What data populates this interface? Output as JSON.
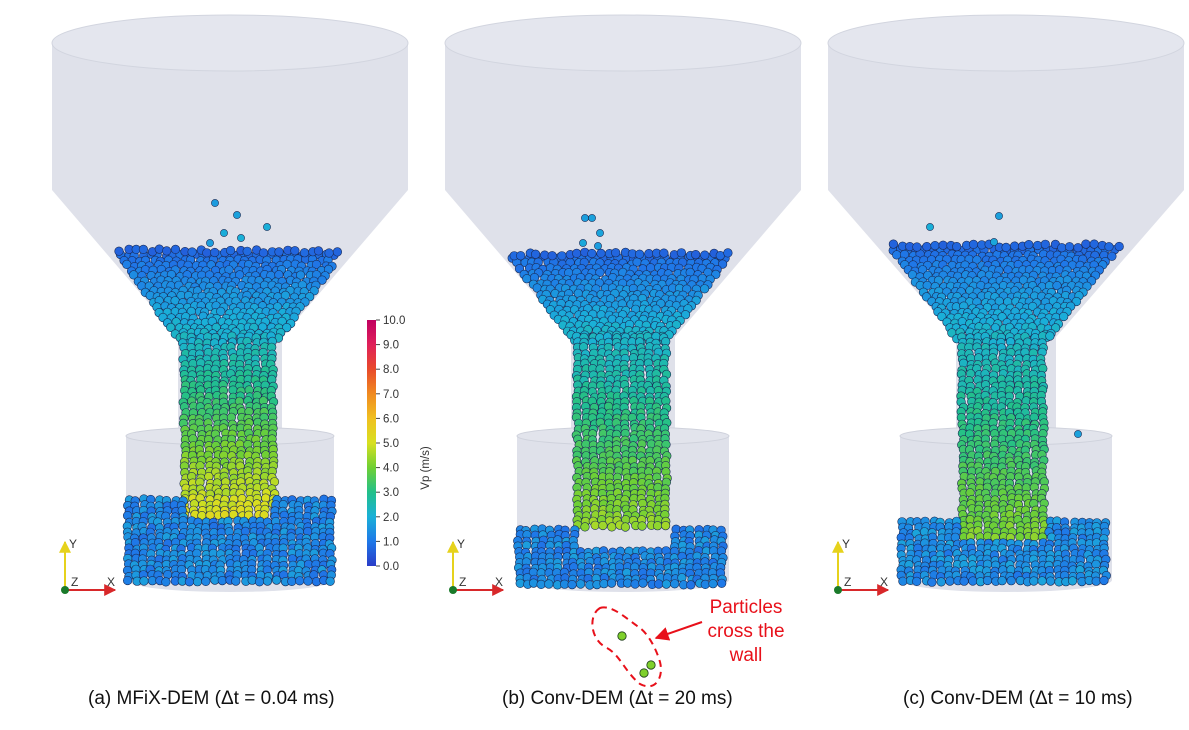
{
  "panels": [
    {
      "caption": "(a) MFiX-DEM (Δt = 0.04 ms)"
    },
    {
      "caption": "(b) Conv-DEM (Δt = 20 ms)"
    },
    {
      "caption": "(c) Conv-DEM (Δt = 10 ms)"
    }
  ],
  "colorbar": {
    "title": "Vp (m/s)",
    "ticks": [
      "10.0",
      "9.0",
      "8.0",
      "7.0",
      "6.0",
      "5.0",
      "4.0",
      "3.0",
      "2.0",
      "1.0",
      "0.0"
    ],
    "min": 0.0,
    "max": 10.0,
    "colormap": "rainbow (blue → cyan → green → yellow → orange → red → magenta)"
  },
  "axes_labels": {
    "y": "Y",
    "z": "Z",
    "x": "X"
  },
  "annotation": {
    "lines": [
      "Particles",
      "cross the",
      "wall"
    ],
    "color": "#e8101a"
  },
  "colors": {
    "hopper": "#d9dce6",
    "slow": "#1f5fc8",
    "fast": "#d8d020",
    "annotation": "#e8101a"
  }
}
